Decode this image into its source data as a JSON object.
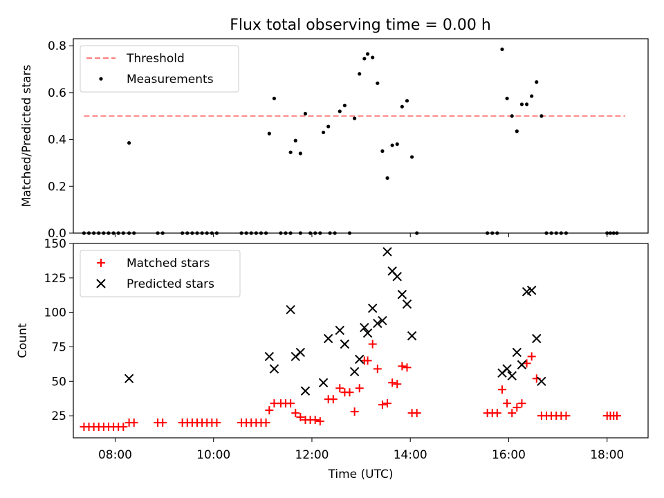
{
  "figure": {
    "title": "Flux total observing time = 0.00 h"
  },
  "chart_data": [
    {
      "type": "scatter",
      "ylabel": "Matched/Predicted stars",
      "ylim": [
        0,
        0.83
      ],
      "yticks": [
        0.0,
        0.2,
        0.4,
        0.6,
        0.8
      ],
      "ytick_labels": [
        "0.0",
        "0.2",
        "0.4",
        "0.6",
        "0.8"
      ],
      "xlim": [
        "07:09",
        "18:50"
      ],
      "xticks": [
        "08:00",
        "10:00",
        "12:00",
        "14:00",
        "16:00",
        "18:00"
      ],
      "legend_position": "top-left",
      "grid": false,
      "threshold": {
        "name": "Threshold",
        "value": 0.5,
        "x_range": [
          "07:22",
          "18:22"
        ],
        "color": "#ff7b7b",
        "style": "dashed"
      },
      "measurements": {
        "name": "Measurements",
        "color": "#000000",
        "points": [
          [
            "07:22",
            0.0
          ],
          [
            "07:28",
            0.0
          ],
          [
            "07:34",
            0.0
          ],
          [
            "07:40",
            0.0
          ],
          [
            "07:46",
            0.0
          ],
          [
            "07:52",
            0.0
          ],
          [
            "07:58",
            0.0
          ],
          [
            "08:04",
            0.0
          ],
          [
            "08:10",
            0.0
          ],
          [
            "08:17",
            0.0
          ],
          [
            "08:17",
            0.385
          ],
          [
            "08:23",
            0.0
          ],
          [
            "08:52",
            0.0
          ],
          [
            "08:58",
            0.0
          ],
          [
            "09:22",
            0.0
          ],
          [
            "09:28",
            0.0
          ],
          [
            "09:34",
            0.0
          ],
          [
            "09:40",
            0.0
          ],
          [
            "09:46",
            0.0
          ],
          [
            "09:52",
            0.0
          ],
          [
            "09:58",
            0.0
          ],
          [
            "10:04",
            0.0
          ],
          [
            "10:34",
            0.0
          ],
          [
            "10:40",
            0.0
          ],
          [
            "10:46",
            0.0
          ],
          [
            "10:52",
            0.0
          ],
          [
            "10:58",
            0.0
          ],
          [
            "11:04",
            0.0
          ],
          [
            "11:08",
            0.425
          ],
          [
            "11:14",
            0.575
          ],
          [
            "11:22",
            0.0
          ],
          [
            "11:28",
            0.0
          ],
          [
            "11:34",
            0.0
          ],
          [
            "11:34",
            0.345
          ],
          [
            "11:40",
            0.395
          ],
          [
            "11:46",
            0.34
          ],
          [
            "11:46",
            0.0
          ],
          [
            "11:52",
            0.51
          ],
          [
            "11:58",
            0.0
          ],
          [
            "12:04",
            0.0
          ],
          [
            "12:10",
            0.0
          ],
          [
            "12:14",
            0.43
          ],
          [
            "12:20",
            0.455
          ],
          [
            "12:22",
            0.0
          ],
          [
            "12:28",
            0.0
          ],
          [
            "12:34",
            0.52
          ],
          [
            "12:40",
            0.545
          ],
          [
            "12:46",
            0.0
          ],
          [
            "12:52",
            0.49
          ],
          [
            "12:58",
            0.68
          ],
          [
            "13:04",
            0.745
          ],
          [
            "13:08",
            0.765
          ],
          [
            "13:14",
            0.75
          ],
          [
            "13:20",
            0.64
          ],
          [
            "13:26",
            0.35
          ],
          [
            "13:32",
            0.235
          ],
          [
            "13:38",
            0.375
          ],
          [
            "13:44",
            0.38
          ],
          [
            "13:50",
            0.54
          ],
          [
            "13:56",
            0.565
          ],
          [
            "14:02",
            0.325
          ],
          [
            "14:08",
            0.0
          ],
          [
            "15:34",
            0.0
          ],
          [
            "15:40",
            0.0
          ],
          [
            "15:46",
            0.0
          ],
          [
            "15:52",
            0.785
          ],
          [
            "15:58",
            0.575
          ],
          [
            "16:04",
            0.5
          ],
          [
            "16:10",
            0.435
          ],
          [
            "16:16",
            0.55
          ],
          [
            "16:22",
            0.55
          ],
          [
            "16:28",
            0.585
          ],
          [
            "16:34",
            0.645
          ],
          [
            "16:40",
            0.5
          ],
          [
            "16:46",
            0.0
          ],
          [
            "16:52",
            0.0
          ],
          [
            "16:58",
            0.0
          ],
          [
            "17:04",
            0.0
          ],
          [
            "17:10",
            0.0
          ],
          [
            "18:00",
            0.0
          ],
          [
            "18:04",
            0.0
          ],
          [
            "18:08",
            0.0
          ],
          [
            "18:12",
            0.0
          ]
        ]
      }
    },
    {
      "type": "scatter",
      "xlabel": "Time (UTC)",
      "ylabel": "Count",
      "ylim": [
        9,
        150
      ],
      "yticks": [
        25,
        50,
        75,
        100,
        125,
        150
      ],
      "ytick_labels": [
        "25",
        "50",
        "75",
        "100",
        "125",
        "150"
      ],
      "xlim": [
        "07:09",
        "18:50"
      ],
      "xticks": [
        "08:00",
        "10:00",
        "12:00",
        "14:00",
        "16:00",
        "18:00"
      ],
      "legend_position": "top-left",
      "grid": false,
      "series": [
        {
          "name": "Matched stars",
          "marker": "plus",
          "color": "#ff0000",
          "points": [
            [
              "07:22",
              17
            ],
            [
              "07:28",
              17
            ],
            [
              "07:34",
              17
            ],
            [
              "07:40",
              17
            ],
            [
              "07:46",
              17
            ],
            [
              "07:52",
              17
            ],
            [
              "07:58",
              17
            ],
            [
              "08:04",
              17
            ],
            [
              "08:10",
              17
            ],
            [
              "08:17",
              20
            ],
            [
              "08:23",
              20
            ],
            [
              "08:52",
              20
            ],
            [
              "08:58",
              20
            ],
            [
              "09:22",
              20
            ],
            [
              "09:28",
              20
            ],
            [
              "09:34",
              20
            ],
            [
              "09:40",
              20
            ],
            [
              "09:46",
              20
            ],
            [
              "09:52",
              20
            ],
            [
              "09:58",
              20
            ],
            [
              "10:04",
              20
            ],
            [
              "10:34",
              20
            ],
            [
              "10:40",
              20
            ],
            [
              "10:46",
              20
            ],
            [
              "10:52",
              20
            ],
            [
              "10:58",
              20
            ],
            [
              "11:04",
              20
            ],
            [
              "11:08",
              29
            ],
            [
              "11:14",
              34
            ],
            [
              "11:22",
              34
            ],
            [
              "11:28",
              34
            ],
            [
              "11:34",
              34
            ],
            [
              "11:40",
              27
            ],
            [
              "11:46",
              24
            ],
            [
              "11:52",
              22
            ],
            [
              "11:58",
              22
            ],
            [
              "12:04",
              22
            ],
            [
              "12:10",
              21
            ],
            [
              "12:20",
              37
            ],
            [
              "12:26",
              37
            ],
            [
              "12:34",
              45
            ],
            [
              "12:40",
              42
            ],
            [
              "12:46",
              42
            ],
            [
              "12:52",
              28
            ],
            [
              "12:58",
              45
            ],
            [
              "13:04",
              65
            ],
            [
              "13:08",
              65
            ],
            [
              "13:14",
              77
            ],
            [
              "13:20",
              59
            ],
            [
              "13:26",
              33
            ],
            [
              "13:32",
              34
            ],
            [
              "13:38",
              49
            ],
            [
              "13:44",
              48
            ],
            [
              "13:50",
              61
            ],
            [
              "13:56",
              60
            ],
            [
              "14:02",
              27
            ],
            [
              "14:08",
              27
            ],
            [
              "15:34",
              27
            ],
            [
              "15:40",
              27
            ],
            [
              "15:46",
              27
            ],
            [
              "15:52",
              44
            ],
            [
              "15:58",
              34
            ],
            [
              "16:04",
              27
            ],
            [
              "16:10",
              31
            ],
            [
              "16:16",
              34
            ],
            [
              "16:22",
              63
            ],
            [
              "16:28",
              68
            ],
            [
              "16:34",
              52
            ],
            [
              "16:40",
              25
            ],
            [
              "16:46",
              25
            ],
            [
              "16:52",
              25
            ],
            [
              "16:58",
              25
            ],
            [
              "17:04",
              25
            ],
            [
              "17:10",
              25
            ],
            [
              "18:00",
              25
            ],
            [
              "18:04",
              25
            ],
            [
              "18:08",
              25
            ],
            [
              "18:12",
              25
            ]
          ]
        },
        {
          "name": "Predicted stars",
          "marker": "x",
          "color": "#000000",
          "points": [
            [
              "08:17",
              52
            ],
            [
              "11:08",
              68
            ],
            [
              "11:14",
              59
            ],
            [
              "11:34",
              102
            ],
            [
              "11:40",
              68
            ],
            [
              "11:46",
              71
            ],
            [
              "11:52",
              43
            ],
            [
              "12:14",
              49
            ],
            [
              "12:20",
              81
            ],
            [
              "12:34",
              87
            ],
            [
              "12:40",
              77
            ],
            [
              "12:52",
              57
            ],
            [
              "12:58",
              66
            ],
            [
              "13:04",
              89
            ],
            [
              "13:08",
              85
            ],
            [
              "13:14",
              103
            ],
            [
              "13:20",
              92
            ],
            [
              "13:26",
              94
            ],
            [
              "13:32",
              144
            ],
            [
              "13:38",
              130
            ],
            [
              "13:44",
              126
            ],
            [
              "13:50",
              113
            ],
            [
              "13:56",
              106
            ],
            [
              "14:02",
              83
            ],
            [
              "15:52",
              56
            ],
            [
              "15:58",
              59
            ],
            [
              "16:04",
              54
            ],
            [
              "16:10",
              71
            ],
            [
              "16:16",
              62
            ],
            [
              "16:22",
              115
            ],
            [
              "16:28",
              116
            ],
            [
              "16:34",
              81
            ],
            [
              "16:40",
              50
            ]
          ]
        }
      ]
    }
  ]
}
